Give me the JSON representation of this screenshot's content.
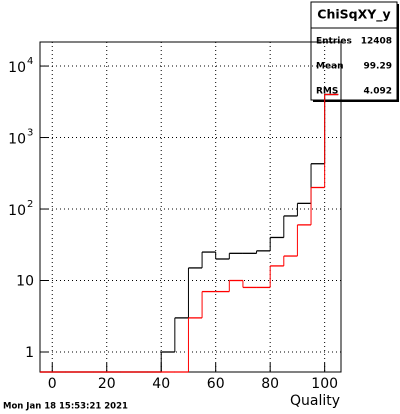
{
  "chart_data": {
    "type": "histogram",
    "x_label": "Quality",
    "bins": [
      -5,
      0,
      5,
      10,
      15,
      20,
      25,
      30,
      35,
      40,
      45,
      50,
      55,
      60,
      65,
      70,
      75,
      80,
      85,
      90,
      95,
      100,
      105
    ],
    "series": [
      {
        "color": "#000000",
        "values": [
          0,
          0,
          0,
          0,
          0,
          0,
          0,
          0,
          0,
          1,
          3,
          15,
          25,
          20,
          24,
          24,
          26,
          40,
          80,
          120,
          430,
          4000
        ]
      },
      {
        "color": "#ff0000",
        "values": [
          0,
          0,
          0,
          0,
          0,
          0,
          0,
          0,
          0,
          0,
          0,
          3,
          7,
          7,
          10,
          8,
          8,
          16,
          22,
          60,
          200,
          4000
        ]
      }
    ],
    "xlim": [
      -4.5,
      106
    ],
    "xticks": [
      0,
      20,
      40,
      60,
      80,
      100
    ],
    "ylim": [
      0.525,
      21700
    ],
    "log_y": true,
    "grid": true,
    "yticks": [
      {
        "value": 1,
        "label": "1"
      },
      {
        "value": 10,
        "label": "10"
      },
      {
        "value": 100,
        "label": "10",
        "exponent": "2"
      },
      {
        "value": 1000,
        "label": "10",
        "exponent": "3"
      },
      {
        "value": 10000,
        "label": "10",
        "exponent": "4"
      }
    ],
    "stats": {
      "title": "ChiSqXY_y",
      "rows": [
        {
          "label": "Entries",
          "value": 12408
        },
        {
          "label": "Mean",
          "value": 99.29
        },
        {
          "label": "RMS",
          "value": 4.092
        }
      ]
    },
    "timestamp": "Mon Jan 18 15:53:21 2021"
  }
}
